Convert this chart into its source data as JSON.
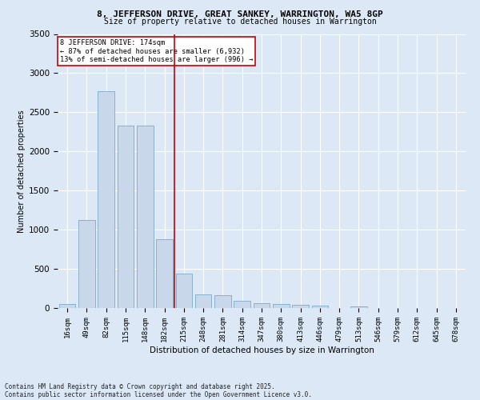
{
  "title": "8, JEFFERSON DRIVE, GREAT SANKEY, WARRINGTON, WA5 8GP",
  "subtitle": "Size of property relative to detached houses in Warrington",
  "xlabel": "Distribution of detached houses by size in Warrington",
  "ylabel": "Number of detached properties",
  "bar_color": "#c8d8ea",
  "bar_edge_color": "#7aaac8",
  "background_color": "#dce8f5",
  "grid_color": "#ffffff",
  "categories": [
    "16sqm",
    "49sqm",
    "82sqm",
    "115sqm",
    "148sqm",
    "182sqm",
    "215sqm",
    "248sqm",
    "281sqm",
    "314sqm",
    "347sqm",
    "380sqm",
    "413sqm",
    "446sqm",
    "479sqm",
    "513sqm",
    "546sqm",
    "579sqm",
    "612sqm",
    "645sqm",
    "678sqm"
  ],
  "values": [
    50,
    1120,
    2770,
    2330,
    2330,
    880,
    440,
    170,
    165,
    90,
    65,
    50,
    40,
    30,
    5,
    25,
    5,
    5,
    5,
    5,
    5
  ],
  "ylim": [
    0,
    3500
  ],
  "yticks": [
    0,
    500,
    1000,
    1500,
    2000,
    2500,
    3000,
    3500
  ],
  "vline_x": 5.5,
  "vline_color": "#cc0000",
  "annotation_text": "8 JEFFERSON DRIVE: 174sqm\n← 87% of detached houses are smaller (6,932)\n13% of semi-detached houses are larger (996) →",
  "annotation_box_color": "#ffffff",
  "annotation_box_edge_color": "#cc0000",
  "footnote1": "Contains HM Land Registry data © Crown copyright and database right 2025.",
  "footnote2": "Contains public sector information licensed under the Open Government Licence v3.0."
}
